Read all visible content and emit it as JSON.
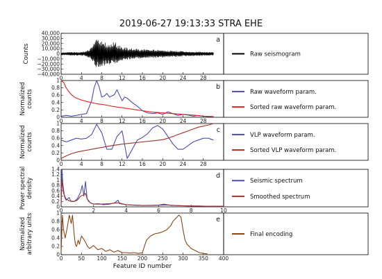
{
  "figure": {
    "title": "2019-06-27 19:13:33 STRA EHE",
    "xlabel": "Feature ID number"
  },
  "chart_data": [
    {
      "panel": "a",
      "type": "line",
      "ylabel": [
        "Counts"
      ],
      "xlim": [
        0,
        32
      ],
      "ylim": [
        -40000,
        40000
      ],
      "xticks": [
        0,
        4,
        8,
        12,
        16,
        20,
        24,
        28
      ],
      "yticks": [
        40000,
        30000,
        20000,
        10000,
        0,
        -10000,
        -20000,
        -30000,
        -40000
      ],
      "ytick_labels": [
        "40,000",
        "30,000",
        "20,000",
        "10,000",
        "0",
        "−10,000",
        "−20,000",
        "−30,000",
        "−40,000"
      ],
      "grid": false,
      "legend_position": "right",
      "series": [
        {
          "name": "Raw seismogram",
          "color": "#000000",
          "x_range": [
            0,
            30
          ],
          "envelope": [
            [
              0,
              2500
            ],
            [
              2,
              3000
            ],
            [
              4,
              3500
            ],
            [
              5,
              5000
            ],
            [
              6,
              12000
            ],
            [
              6.5,
              22000
            ],
            [
              7,
              28000
            ],
            [
              8,
              24000
            ],
            [
              9,
              21000
            ],
            [
              10,
              19000
            ],
            [
              10.5,
              26000
            ],
            [
              11,
              18000
            ],
            [
              12,
              14000
            ],
            [
              13,
              12000
            ],
            [
              14,
              10000
            ],
            [
              16,
              9000
            ],
            [
              18,
              8000
            ],
            [
              20,
              7000
            ],
            [
              22,
              6000
            ],
            [
              24,
              5000
            ],
            [
              26,
              4000
            ],
            [
              28,
              3500
            ],
            [
              30,
              3000
            ]
          ]
        }
      ]
    },
    {
      "panel": "b",
      "type": "line",
      "ylabel": [
        "Normalized",
        "counts"
      ],
      "xlim": [
        0,
        32
      ],
      "ylim": [
        0,
        1.0
      ],
      "xticks": [
        0,
        4,
        8,
        12,
        16,
        20,
        24,
        28
      ],
      "yticks": [
        0.0,
        0.2,
        0.4,
        0.6,
        0.8,
        1.0
      ],
      "grid": false,
      "legend_position": "right",
      "series": [
        {
          "name": "Raw waveform param.",
          "color": "#4b4bb5",
          "x": [
            0,
            1,
            2,
            3,
            4,
            5,
            6,
            6.5,
            7,
            7.5,
            8,
            8.5,
            9,
            9.5,
            10,
            10.5,
            11,
            11.5,
            12,
            12.5,
            13,
            14,
            15,
            16,
            17,
            18,
            19,
            20,
            21,
            22,
            23,
            24,
            25,
            26,
            27,
            28,
            29,
            30
          ],
          "y": [
            0.03,
            0.05,
            0.03,
            0.05,
            0.08,
            0.1,
            0.45,
            0.8,
            1.0,
            0.82,
            0.55,
            0.58,
            0.65,
            0.55,
            0.58,
            0.62,
            0.75,
            0.6,
            0.45,
            0.55,
            0.52,
            0.4,
            0.3,
            0.18,
            0.12,
            0.1,
            0.12,
            0.08,
            0.15,
            0.1,
            0.05,
            0.08,
            0.06,
            0.03,
            0.05,
            0.03,
            0.02,
            0.02
          ]
        },
        {
          "name": "Sorted raw waveform param.",
          "color": "#e02020",
          "x": [
            0,
            0.5,
            1,
            1.5,
            2,
            2.5,
            3,
            4,
            5,
            6,
            7,
            8,
            9,
            10,
            11,
            12,
            13,
            14,
            15,
            16,
            17,
            18,
            20,
            22,
            24,
            26,
            28,
            30
          ],
          "y": [
            1.0,
            0.95,
            0.8,
            0.7,
            0.62,
            0.56,
            0.52,
            0.47,
            0.43,
            0.4,
            0.37,
            0.35,
            0.33,
            0.3,
            0.28,
            0.26,
            0.24,
            0.22,
            0.2,
            0.18,
            0.16,
            0.14,
            0.12,
            0.1,
            0.08,
            0.06,
            0.03,
            0.02
          ]
        }
      ]
    },
    {
      "panel": "c",
      "type": "line",
      "ylabel": [
        "Normalized",
        "counts"
      ],
      "xlim": [
        0,
        32
      ],
      "ylim": [
        0,
        1.0
      ],
      "xticks": [
        0,
        4,
        8,
        12,
        16,
        20,
        24,
        28
      ],
      "yticks": [
        0.0,
        0.2,
        0.4,
        0.6,
        0.8,
        1.0
      ],
      "grid": false,
      "legend_position": "right",
      "series": [
        {
          "name": "VLP waveform param.",
          "color": "#4b4bb5",
          "x": [
            0,
            1,
            2,
            3,
            4,
            5,
            6,
            7,
            8,
            9,
            10,
            11,
            12,
            13,
            14,
            15,
            16,
            17,
            18,
            19,
            20,
            21,
            22,
            23,
            24,
            25,
            26,
            27,
            28,
            29,
            30
          ],
          "y": [
            0.55,
            0.5,
            0.55,
            0.6,
            0.58,
            0.6,
            0.7,
            0.98,
            0.75,
            0.3,
            0.3,
            0.65,
            0.8,
            0.05,
            0.3,
            0.55,
            0.62,
            0.72,
            0.88,
            0.95,
            0.85,
            0.65,
            0.45,
            0.3,
            0.3,
            0.4,
            0.5,
            0.55,
            0.6,
            0.6,
            0.55
          ]
        },
        {
          "name": "Sorted VLP waveform param.",
          "color": "#a03028",
          "x": [
            0,
            1,
            2,
            3,
            4,
            6,
            8,
            10,
            12,
            14,
            16,
            18,
            20,
            21,
            22,
            23,
            24,
            25,
            26,
            27,
            28,
            29,
            30
          ],
          "y": [
            0.05,
            0.12,
            0.18,
            0.22,
            0.25,
            0.3,
            0.35,
            0.4,
            0.44,
            0.47,
            0.5,
            0.53,
            0.56,
            0.6,
            0.65,
            0.7,
            0.75,
            0.8,
            0.85,
            0.9,
            0.93,
            0.96,
            1.0
          ]
        }
      ]
    },
    {
      "panel": "d",
      "type": "line",
      "ylabel": [
        "Power spectral",
        "density"
      ],
      "xlim": [
        0,
        10
      ],
      "ylim": [
        0,
        1.4
      ],
      "xticks": [
        0,
        2,
        4,
        6,
        8,
        10
      ],
      "yticks": [
        0.0,
        0.2,
        0.4,
        0.6,
        0.8,
        1.0,
        1.2,
        1.4
      ],
      "grid": false,
      "legend_position": "right",
      "series": [
        {
          "name": "Seismic spectrum",
          "color": "#4b4bb5",
          "x": [
            0,
            0.05,
            0.1,
            0.2,
            0.3,
            0.4,
            0.5,
            0.6,
            0.8,
            1.0,
            1.2,
            1.3,
            1.4,
            1.5,
            1.6,
            1.7,
            1.8,
            2.0,
            2.3,
            2.6,
            3.0,
            3.3,
            3.5,
            3.6,
            3.8,
            4.0,
            4.5,
            5.0,
            5.5,
            6.0,
            6.3,
            6.5,
            6.8,
            7.0,
            7.5,
            8.0,
            8.5,
            9.0,
            9.5,
            10.0
          ],
          "y": [
            0.1,
            1.4,
            0.9,
            0.4,
            0.25,
            0.3,
            0.35,
            0.2,
            0.2,
            0.3,
            0.55,
            0.8,
            0.4,
            0.95,
            0.3,
            0.2,
            0.15,
            0.1,
            0.12,
            0.08,
            0.1,
            0.15,
            0.25,
            0.12,
            0.1,
            0.08,
            0.06,
            0.05,
            0.05,
            0.06,
            0.1,
            0.08,
            0.05,
            0.05,
            0.04,
            0.03,
            0.03,
            0.02,
            0.02,
            0.02
          ]
        },
        {
          "name": "Smoothed spectrum",
          "color": "#a03028",
          "x": [
            0,
            0.05,
            0.15,
            0.3,
            0.5,
            0.8,
            1.0,
            1.2,
            1.4,
            1.5,
            1.6,
            1.8,
            2.0,
            2.5,
            3.0,
            3.5,
            4.0,
            5.0,
            6.0,
            6.5,
            7.0,
            8.0,
            9.0,
            10.0
          ],
          "y": [
            0.1,
            1.0,
            0.5,
            0.3,
            0.22,
            0.2,
            0.25,
            0.4,
            0.45,
            0.5,
            0.3,
            0.15,
            0.1,
            0.1,
            0.12,
            0.15,
            0.08,
            0.05,
            0.06,
            0.07,
            0.05,
            0.03,
            0.02,
            0.02
          ]
        }
      ]
    },
    {
      "panel": "e",
      "type": "line",
      "ylabel": [
        "Normalized",
        "arbitrary units"
      ],
      "xlim": [
        0,
        400
      ],
      "ylim": [
        0,
        1.0
      ],
      "xticks": [
        0,
        50,
        100,
        150,
        200,
        250,
        300,
        350,
        400
      ],
      "yticks": [
        0.0,
        0.2,
        0.4,
        0.6,
        0.8,
        1.0
      ],
      "grid": false,
      "legend_position": "right",
      "series": [
        {
          "name": "Final encoding",
          "color": "#8b4513",
          "x": [
            0,
            3,
            6,
            10,
            15,
            20,
            25,
            28,
            32,
            35,
            38,
            42,
            45,
            50,
            55,
            60,
            65,
            70,
            80,
            90,
            100,
            110,
            120,
            130,
            140,
            150,
            160,
            170,
            180,
            190,
            200,
            205,
            210,
            220,
            230,
            240,
            250,
            260,
            270,
            275,
            280,
            285,
            290,
            295,
            300,
            305,
            310,
            320,
            330,
            340,
            350,
            360
          ],
          "y": [
            0.05,
            0.95,
            0.6,
            0.4,
            0.65,
            0.95,
            0.75,
            0.95,
            0.5,
            0.25,
            0.2,
            0.35,
            0.25,
            0.45,
            0.38,
            0.3,
            0.2,
            0.15,
            0.22,
            0.12,
            0.15,
            0.08,
            0.12,
            0.06,
            0.1,
            0.05,
            0.05,
            0.04,
            0.05,
            0.03,
            0.05,
            0.2,
            0.35,
            0.45,
            0.5,
            0.52,
            0.55,
            0.6,
            0.7,
            0.8,
            0.85,
            0.9,
            0.95,
            0.9,
            0.6,
            0.35,
            0.25,
            0.15,
            0.1,
            0.05,
            0.03,
            0.02
          ]
        }
      ]
    }
  ]
}
